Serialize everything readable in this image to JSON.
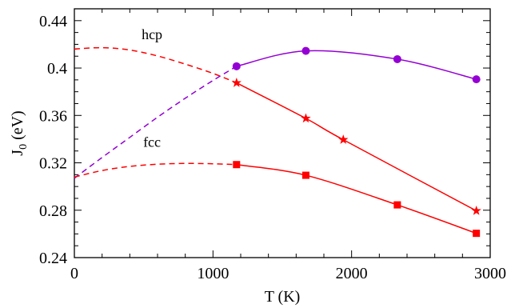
{
  "chart_data": {
    "type": "line",
    "xlabel": "T (K)",
    "ylabel_main": "J",
    "ylabel_sub": "0",
    "ylabel_tail": " (eV)",
    "xlim": [
      0,
      3000
    ],
    "ylim": [
      0.24,
      0.45
    ],
    "xticks": [
      0,
      1000,
      2000,
      3000
    ],
    "xtick_labels": [
      "0",
      "1000",
      "2000",
      "3000"
    ],
    "yticks": [
      0.24,
      0.28,
      0.32,
      0.36,
      0.4,
      0.44
    ],
    "ytick_labels": [
      "0.24",
      "0.28",
      "0.32",
      "0.36",
      "0.4",
      "0.44"
    ],
    "x_minor_step": 200,
    "y_minor_step": 0.01,
    "grid": false,
    "annotations": [
      {
        "text": "hcp",
        "x": 560,
        "y": 0.4245
      },
      {
        "text": "fcc",
        "x": 560,
        "y": 0.3335
      }
    ],
    "series": [
      {
        "color": "#ff0000",
        "marker": "none",
        "style": "dashed",
        "x": [
          0,
          200,
          400,
          600,
          800,
          1000,
          1170
        ],
        "values": [
          0.416,
          0.4172,
          0.4152,
          0.4102,
          0.4033,
          0.3955,
          0.3875
        ]
      },
      {
        "color": "#ff0000",
        "marker": "star",
        "style": "solid",
        "x": [
          1170,
          1670,
          1940,
          2900
        ],
        "values": [
          0.3875,
          0.3575,
          0.3395,
          0.2795
        ]
      },
      {
        "color": "#9400d3",
        "marker": "none",
        "style": "dashed",
        "x": [
          0,
          200,
          400,
          600,
          800,
          1000,
          1170
        ],
        "values": [
          0.307,
          0.3245,
          0.3415,
          0.3585,
          0.3745,
          0.3895,
          0.4015
        ]
      },
      {
        "color": "#9400d3",
        "marker": "circle",
        "style": "solid",
        "x": [
          1170,
          1670,
          2330,
          2900
        ],
        "values": [
          0.4015,
          0.4145,
          0.4075,
          0.3905
        ]
      },
      {
        "color": "#ff0000",
        "marker": "none",
        "style": "dashed",
        "x": [
          0,
          200,
          400,
          600,
          800,
          1000,
          1170
        ],
        "values": [
          0.308,
          0.3135,
          0.317,
          0.3188,
          0.3195,
          0.3192,
          0.3185
        ]
      },
      {
        "color": "#ff0000",
        "marker": "square",
        "style": "solid",
        "x": [
          1170,
          1670,
          2330,
          2900
        ],
        "values": [
          0.3185,
          0.3095,
          0.2845,
          0.2605
        ]
      }
    ]
  }
}
